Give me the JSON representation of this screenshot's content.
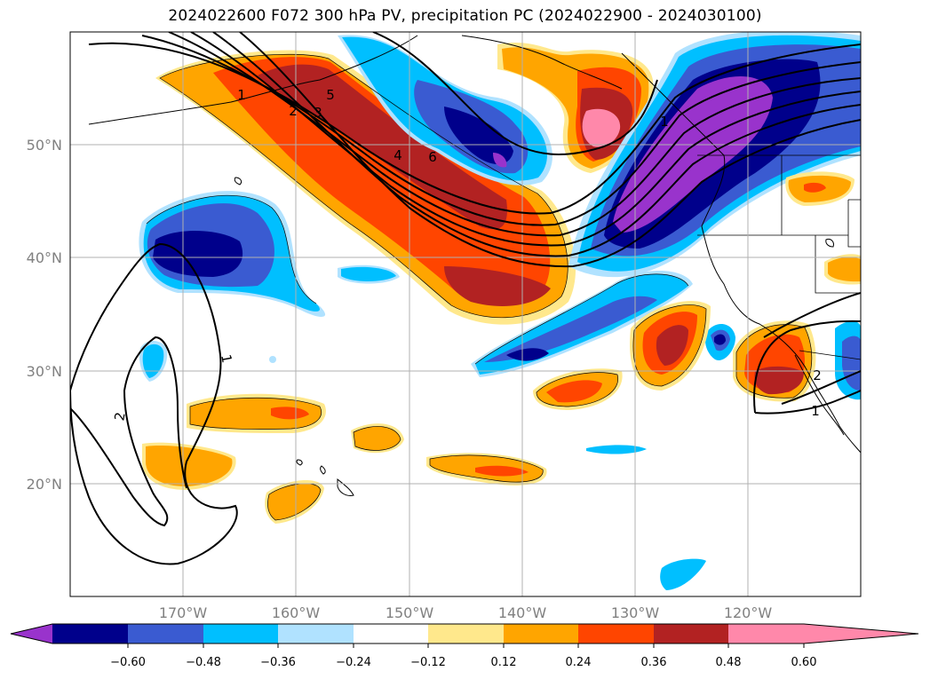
{
  "title": "2024022600 F072 300 hPa PV, precipitation PC (2024022900 - 2024030100)",
  "map": {
    "lat_labels": [
      "50°N",
      "40°N",
      "30°N",
      "20°N"
    ],
    "lon_labels": [
      "170°W",
      "160°W",
      "150°W",
      "140°W",
      "130°W",
      "120°W"
    ],
    "contour_labels": [
      "1",
      "2",
      "3",
      "4",
      "5",
      "6",
      "1",
      "2",
      "1",
      "2",
      "1"
    ]
  },
  "colorbar": {
    "ticks": [
      "−0.60",
      "−0.48",
      "−0.36",
      "−0.24",
      "−0.12",
      "0.12",
      "0.24",
      "0.36",
      "0.48",
      "0.60"
    ],
    "colors": [
      "#9933cc",
      "#00008b",
      "#3a5bd1",
      "#00bfff",
      "#b0e2ff",
      "#ffffff",
      "#ffe88c",
      "#ffa500",
      "#ff4500",
      "#b22222",
      "#ff88aa"
    ]
  },
  "palette": {
    "purple": "#9933cc",
    "navy": "#00008b",
    "blue": "#3a5bd1",
    "cyan": "#00bfff",
    "lightblue": "#b0e2ff",
    "yellow": "#ffe88c",
    "orange": "#ffa500",
    "redorange": "#ff4500",
    "darkred": "#b22222",
    "pink": "#ff88aa"
  }
}
